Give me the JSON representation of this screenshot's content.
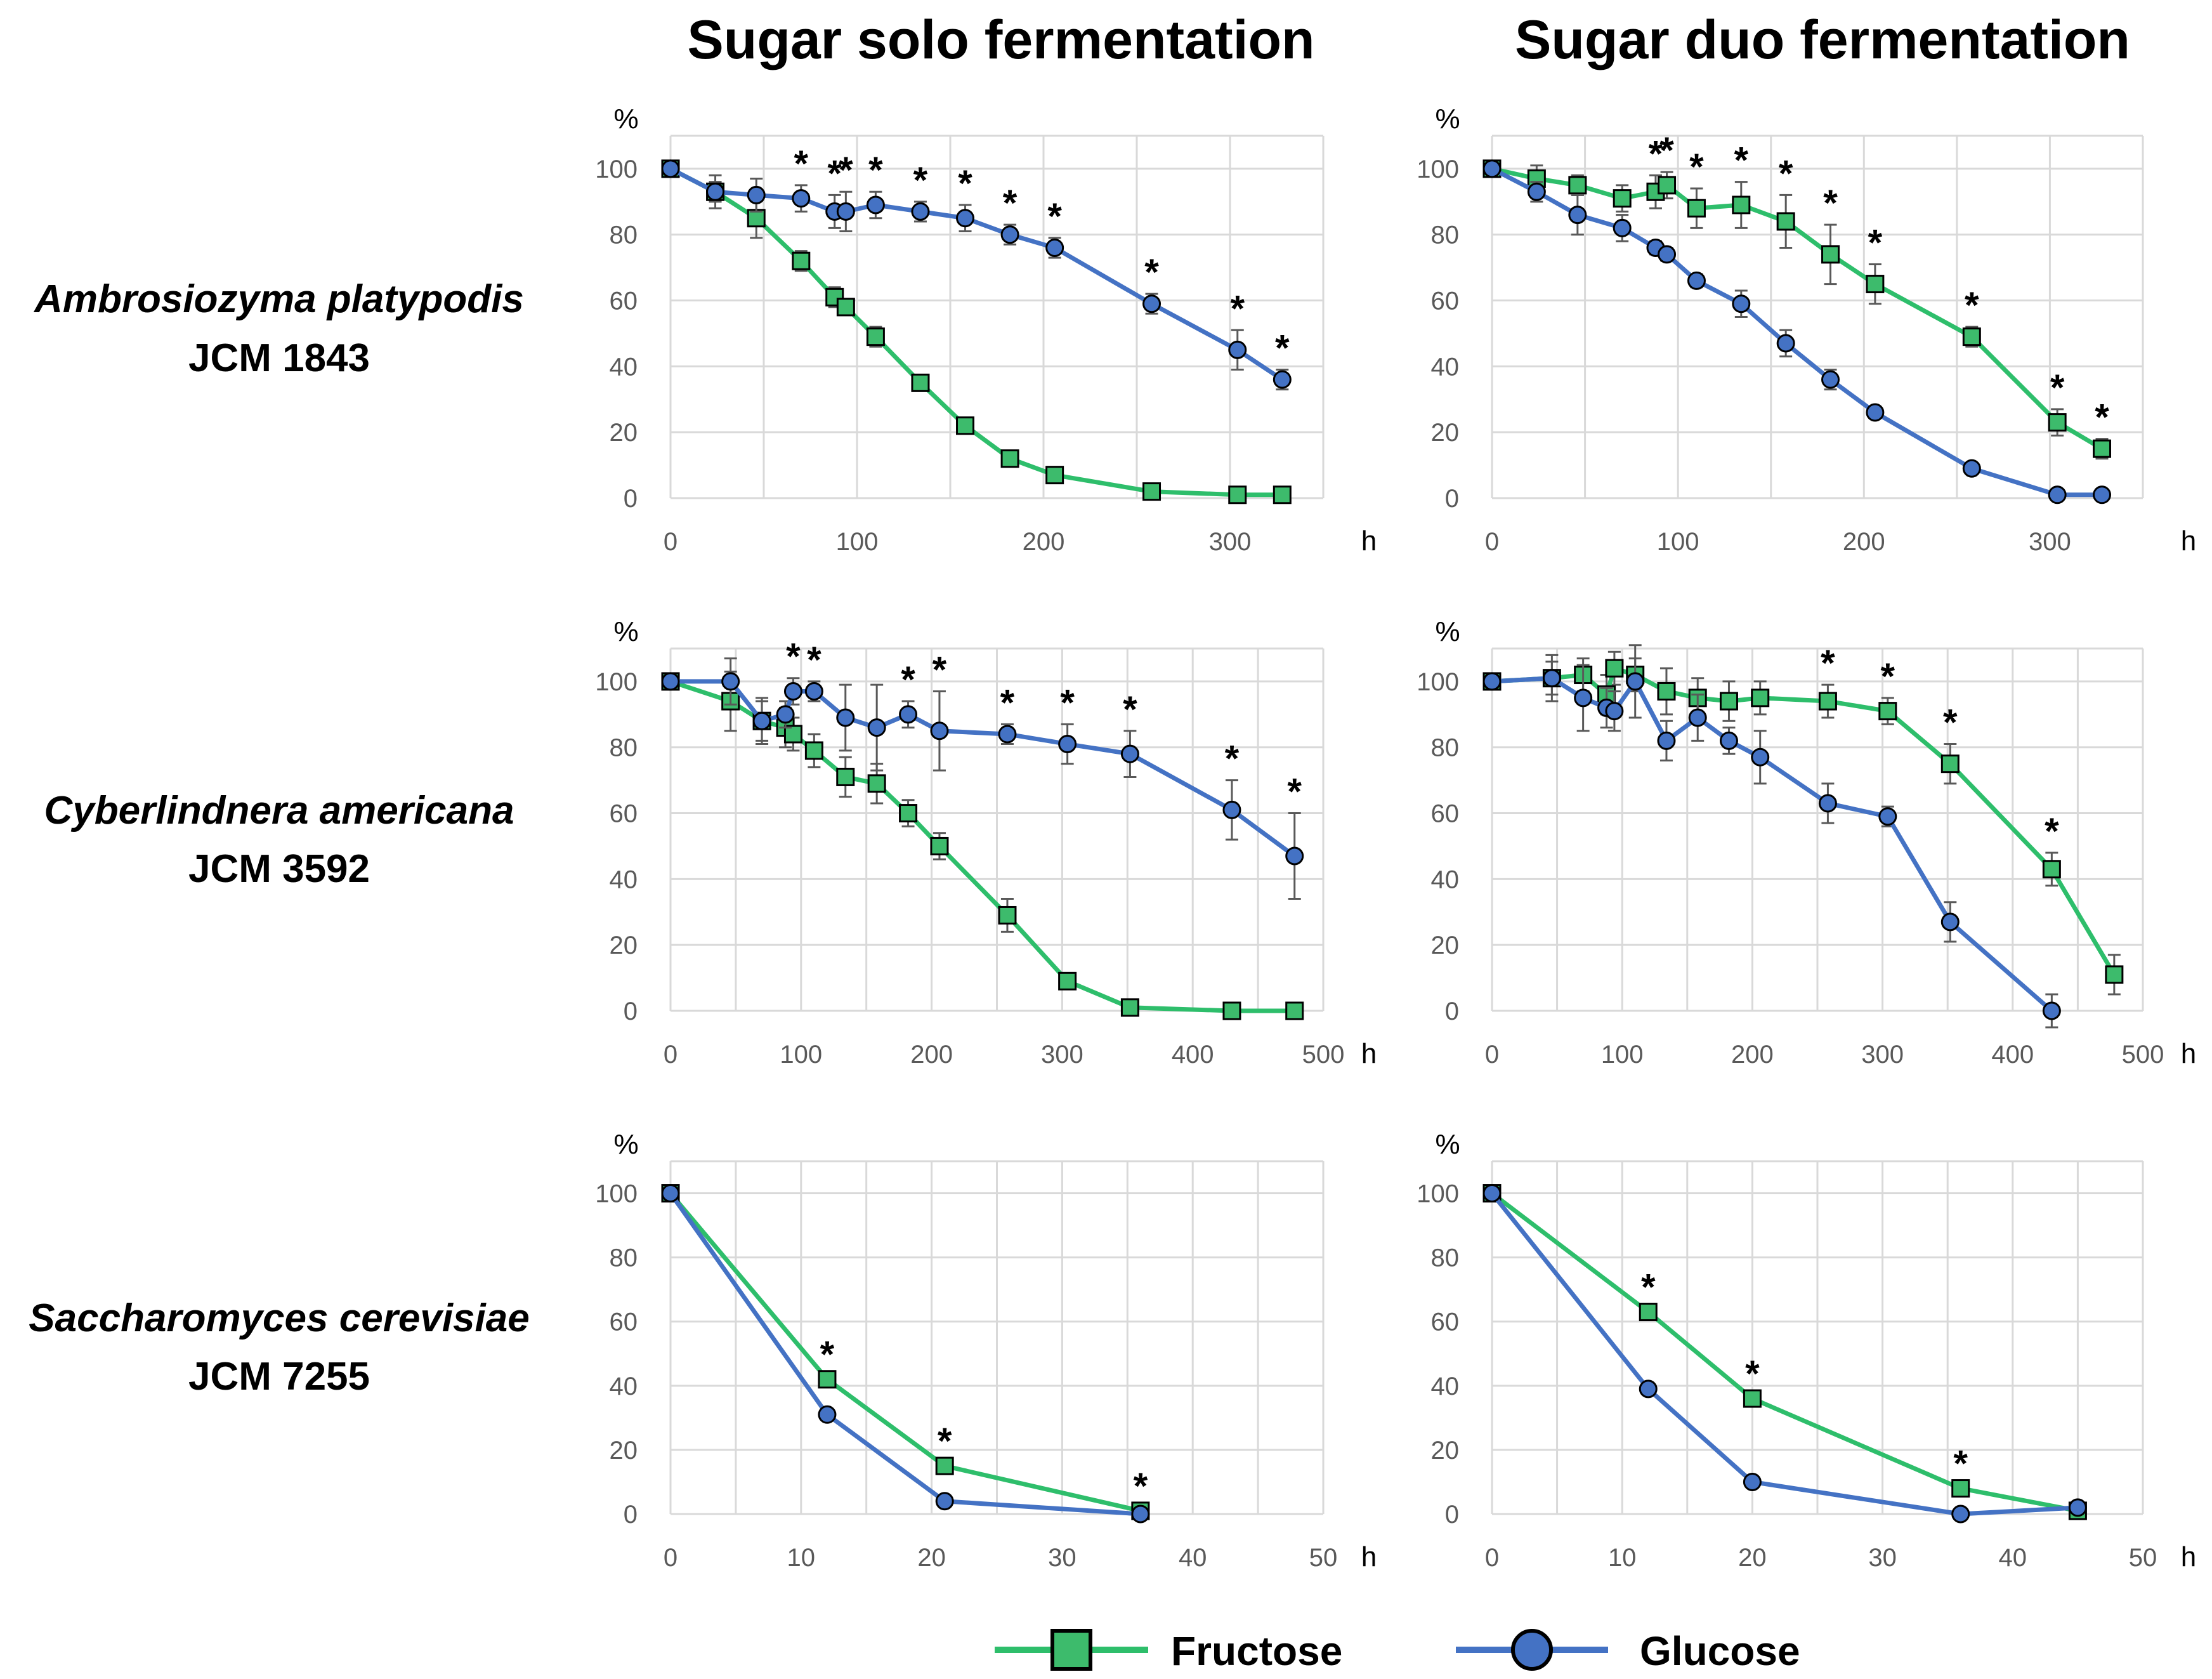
{
  "column_titles": [
    "Sugar solo fermentation",
    "Sugar duo fermentation"
  ],
  "rows": [
    {
      "species": "Ambrosiozyma platypodis",
      "strain": "JCM 1843"
    },
    {
      "species": "Cyberlindnera americana",
      "strain": "JCM 3592"
    },
    {
      "species": "Saccharomyces cerevisiae",
      "strain": "JCM 7255"
    }
  ],
  "legend": {
    "fructose": "Fructose",
    "glucose": "Glucose"
  },
  "colors": {
    "fructose": "#2EBE6B",
    "fructose_marker": "#3DBB6C",
    "glucose": "#4472C4",
    "glucose_marker": "#4472C4",
    "grid": "#D9D9D9",
    "errorbar": "#595959"
  },
  "units": {
    "y": "%",
    "x": "h"
  },
  "star_symbol": "*",
  "chart_data": [
    {
      "type": "line",
      "row": 0,
      "col": 0,
      "xlim": [
        0,
        350
      ],
      "xticks": [
        0,
        100,
        200,
        300
      ],
      "ylim": [
        0,
        110
      ],
      "yticks": [
        0,
        20,
        40,
        60,
        80,
        100
      ],
      "series": [
        {
          "name": "Fructose",
          "x": [
            0,
            24,
            46,
            70,
            88,
            94,
            110,
            134,
            158,
            182,
            206,
            258,
            304,
            328
          ],
          "values": [
            100,
            93,
            85,
            72,
            61,
            58,
            49,
            35,
            22,
            12,
            7,
            2,
            1,
            1
          ],
          "err": [
            1,
            3,
            6,
            3,
            3,
            2,
            3,
            1,
            1,
            1,
            1,
            1,
            1,
            1
          ]
        },
        {
          "name": "Glucose",
          "x": [
            0,
            24,
            46,
            70,
            88,
            94,
            110,
            134,
            158,
            182,
            206,
            258,
            304,
            328
          ],
          "values": [
            100,
            93,
            92,
            91,
            87,
            87,
            89,
            87,
            85,
            80,
            76,
            59,
            45,
            36
          ],
          "err": [
            1,
            5,
            5,
            4,
            5,
            6,
            4,
            3,
            4,
            3,
            3,
            3,
            6,
            3
          ]
        }
      ],
      "significant_x": [
        70,
        88,
        94,
        110,
        134,
        158,
        182,
        206,
        258,
        304,
        328
      ]
    },
    {
      "type": "line",
      "row": 0,
      "col": 1,
      "xlim": [
        0,
        350
      ],
      "xticks": [
        0,
        100,
        200,
        300
      ],
      "ylim": [
        0,
        110
      ],
      "yticks": [
        0,
        20,
        40,
        60,
        80,
        100
      ],
      "series": [
        {
          "name": "Fructose",
          "x": [
            0,
            24,
            46,
            70,
            88,
            94,
            110,
            134,
            158,
            182,
            206,
            258,
            304,
            328
          ],
          "values": [
            100,
            97,
            95,
            91,
            93,
            95,
            88,
            89,
            84,
            74,
            65,
            49,
            23,
            15
          ],
          "err": [
            1,
            4,
            3,
            4,
            5,
            4,
            6,
            7,
            8,
            9,
            6,
            3,
            4,
            3
          ]
        },
        {
          "name": "Glucose",
          "x": [
            0,
            24,
            46,
            70,
            88,
            94,
            110,
            134,
            158,
            182,
            206,
            258,
            304,
            328
          ],
          "values": [
            100,
            93,
            86,
            82,
            76,
            74,
            66,
            59,
            47,
            36,
            26,
            9,
            1,
            1
          ],
          "err": [
            1,
            3,
            6,
            4,
            2,
            2,
            2,
            4,
            4,
            3,
            1,
            1,
            1,
            1
          ]
        }
      ],
      "significant_x": [
        88,
        94,
        110,
        134,
        158,
        182,
        206,
        258,
        304,
        328
      ]
    },
    {
      "type": "line",
      "row": 1,
      "col": 0,
      "xlim": [
        0,
        500
      ],
      "xticks": [
        0,
        100,
        200,
        300,
        400,
        500
      ],
      "ylim": [
        0,
        110
      ],
      "yticks": [
        0,
        20,
        40,
        60,
        80,
        100
      ],
      "series": [
        {
          "name": "Fructose",
          "x": [
            0,
            46,
            70,
            88,
            94,
            110,
            134,
            158,
            182,
            206,
            258,
            304,
            352,
            430,
            478
          ],
          "values": [
            100,
            94,
            88,
            86,
            84,
            79,
            71,
            69,
            60,
            50,
            29,
            9,
            1,
            0,
            0
          ],
          "err": [
            1,
            9,
            7,
            6,
            5,
            5,
            6,
            6,
            4,
            4,
            5,
            1,
            1,
            1,
            1
          ]
        },
        {
          "name": "Glucose",
          "x": [
            0,
            46,
            70,
            88,
            94,
            110,
            134,
            158,
            182,
            206,
            258,
            304,
            352,
            430,
            478
          ],
          "values": [
            100,
            100,
            88,
            90,
            97,
            97,
            89,
            86,
            90,
            85,
            84,
            81,
            78,
            61,
            47
          ],
          "err": [
            1,
            7,
            6,
            4,
            4,
            3,
            10,
            13,
            4,
            12,
            3,
            6,
            7,
            9,
            13
          ]
        }
      ],
      "significant_x": [
        94,
        110,
        182,
        206,
        258,
        304,
        352,
        430,
        478
      ]
    },
    {
      "type": "line",
      "row": 1,
      "col": 1,
      "xlim": [
        0,
        500
      ],
      "xticks": [
        0,
        100,
        200,
        300,
        400,
        500
      ],
      "ylim": [
        0,
        110
      ],
      "yticks": [
        0,
        20,
        40,
        60,
        80,
        100
      ],
      "series": [
        {
          "name": "Fructose",
          "x": [
            0,
            46,
            70,
            88,
            94,
            110,
            134,
            158,
            182,
            206,
            258,
            304,
            352,
            430,
            478
          ],
          "values": [
            100,
            101,
            102,
            96,
            104,
            102,
            97,
            95,
            94,
            95,
            94,
            91,
            75,
            43,
            11
          ],
          "err": [
            1,
            5,
            5,
            6,
            5,
            5,
            7,
            6,
            6,
            5,
            5,
            4,
            6,
            5,
            6
          ]
        },
        {
          "name": "Glucose",
          "x": [
            0,
            46,
            70,
            88,
            94,
            110,
            134,
            158,
            182,
            206,
            258,
            304,
            352,
            430
          ],
          "values": [
            100,
            101,
            95,
            92,
            91,
            100,
            82,
            89,
            82,
            77,
            63,
            59,
            27,
            0
          ],
          "err": [
            1,
            7,
            10,
            6,
            6,
            11,
            6,
            7,
            4,
            8,
            6,
            3,
            6,
            5
          ]
        }
      ],
      "significant_x": [
        258,
        304,
        352,
        430
      ]
    },
    {
      "type": "line",
      "row": 2,
      "col": 0,
      "xlim": [
        0,
        50
      ],
      "xticks": [
        0,
        10,
        20,
        30,
        40,
        50
      ],
      "ylim": [
        0,
        110
      ],
      "yticks": [
        0,
        20,
        40,
        60,
        80,
        100
      ],
      "series": [
        {
          "name": "Fructose",
          "x": [
            0,
            12,
            21,
            36
          ],
          "values": [
            100,
            42,
            15,
            1
          ],
          "err": [
            0,
            1,
            1,
            1
          ]
        },
        {
          "name": "Glucose",
          "x": [
            0,
            12,
            21,
            36
          ],
          "values": [
            100,
            31,
            4,
            0
          ],
          "err": [
            0,
            1,
            1,
            1
          ]
        }
      ],
      "significant_x": [
        12,
        21,
        36
      ]
    },
    {
      "type": "line",
      "row": 2,
      "col": 1,
      "xlim": [
        0,
        50
      ],
      "xticks": [
        0,
        10,
        20,
        30,
        40,
        50
      ],
      "ylim": [
        0,
        110
      ],
      "yticks": [
        0,
        20,
        40,
        60,
        80,
        100
      ],
      "series": [
        {
          "name": "Fructose",
          "x": [
            0,
            12,
            20,
            36,
            45
          ],
          "values": [
            100,
            63,
            36,
            8,
            1
          ],
          "err": [
            0,
            1,
            1,
            1,
            1
          ]
        },
        {
          "name": "Glucose",
          "x": [
            0,
            12,
            20,
            36,
            45
          ],
          "values": [
            100,
            39,
            10,
            0,
            2
          ],
          "err": [
            0,
            1,
            1,
            1,
            1
          ]
        }
      ],
      "significant_x": [
        12,
        20,
        36
      ]
    }
  ]
}
